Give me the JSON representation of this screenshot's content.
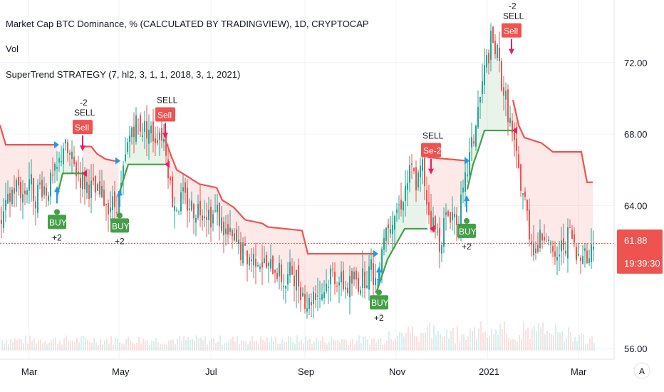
{
  "legend": {
    "title": "Market Cap BTC Dominance, % (CALCULATED BY TRADINGVIEW), 1D, CRYPTOCAP",
    "vol": "Vol",
    "strategy": "SuperTrend STRATEGY (7, hl2, 3, 1, 1, 2018, 3, 1, 2021)"
  },
  "price_badge": {
    "value": "61.88",
    "countdown": "19:39:30",
    "color": "#ef5350"
  },
  "auto_scale_label": "A",
  "colors": {
    "up": "#26a69a",
    "down": "#ef5350",
    "buy": "#43a047",
    "sell": "#ef5350",
    "grid": "#f0f3fa"
  },
  "chart_data": {
    "type": "candlestick",
    "yticks": [
      56.0,
      64.0,
      68.0,
      72.0
    ],
    "ytick_labels": [
      "56.00",
      "64.00",
      "68.00",
      "72.00"
    ],
    "ylim": [
      55.4,
      75.5
    ],
    "xticks": [
      "Mar",
      "May",
      "Jul",
      "Sep",
      "Nov",
      "2021",
      "Mar"
    ],
    "last_price": 61.88,
    "close_path": [
      [
        0,
        63.0
      ],
      [
        8,
        63.8
      ],
      [
        16,
        64.8
      ],
      [
        24,
        65.2
      ],
      [
        32,
        64.5
      ],
      [
        40,
        65.6
      ],
      [
        48,
        64.4
      ],
      [
        56,
        65.2
      ],
      [
        64,
        64.9
      ],
      [
        72,
        65.3
      ],
      [
        80,
        66.0
      ],
      [
        88,
        67.4
      ],
      [
        96,
        66.7
      ],
      [
        104,
        66.1
      ],
      [
        112,
        65.6
      ],
      [
        120,
        65.2
      ],
      [
        128,
        64.9
      ],
      [
        136,
        64.6
      ],
      [
        144,
        64.4
      ],
      [
        152,
        64.1
      ],
      [
        160,
        64.0
      ],
      [
        168,
        64.6
      ],
      [
        176,
        66.8
      ],
      [
        184,
        68.4
      ],
      [
        192,
        68.7
      ],
      [
        200,
        68.3
      ],
      [
        208,
        68.3
      ],
      [
        216,
        67.8
      ],
      [
        224,
        68.3
      ],
      [
        232,
        67.3
      ],
      [
        240,
        64.4
      ],
      [
        248,
        64.0
      ],
      [
        256,
        64.4
      ],
      [
        264,
        64.0
      ],
      [
        272,
        63.8
      ],
      [
        280,
        63.9
      ],
      [
        288,
        63.8
      ],
      [
        296,
        63.4
      ],
      [
        304,
        63.6
      ],
      [
        312,
        62.8
      ],
      [
        320,
        62.2
      ],
      [
        328,
        62.0
      ],
      [
        336,
        61.5
      ],
      [
        344,
        61.2
      ],
      [
        352,
        61.0
      ],
      [
        360,
        61.2
      ],
      [
        368,
        60.8
      ],
      [
        376,
        60.4
      ],
      [
        384,
        60.7
      ],
      [
        392,
        60.1
      ],
      [
        400,
        59.6
      ],
      [
        408,
        60.4
      ],
      [
        416,
        59.9
      ],
      [
        424,
        59.1
      ],
      [
        432,
        58.4
      ],
      [
        440,
        59.3
      ],
      [
        448,
        59.0
      ],
      [
        456,
        59.5
      ],
      [
        464,
        60.3
      ],
      [
        472,
        60.0
      ],
      [
        480,
        59.6
      ],
      [
        488,
        59.4
      ],
      [
        496,
        59.9
      ],
      [
        504,
        59.7
      ],
      [
        512,
        60.1
      ],
      [
        520,
        60.4
      ],
      [
        528,
        59.6
      ],
      [
        536,
        62.3
      ],
      [
        544,
        63.1
      ],
      [
        552,
        63.6
      ],
      [
        560,
        64.0
      ],
      [
        568,
        65.0
      ],
      [
        576,
        66.0
      ],
      [
        584,
        65.2
      ],
      [
        592,
        66.2
      ],
      [
        600,
        63.8
      ],
      [
        608,
        62.8
      ],
      [
        616,
        62.0
      ],
      [
        624,
        63.2
      ],
      [
        632,
        63.7
      ],
      [
        640,
        63.3
      ],
      [
        648,
        64.2
      ],
      [
        656,
        66.3
      ],
      [
        664,
        67.8
      ],
      [
        672,
        69.8
      ],
      [
        680,
        71.7
      ],
      [
        688,
        73.1
      ],
      [
        696,
        72.6
      ],
      [
        704,
        70.8
      ],
      [
        712,
        69.3
      ],
      [
        720,
        67.4
      ],
      [
        728,
        65.6
      ],
      [
        736,
        64.2
      ],
      [
        744,
        62.1
      ],
      [
        752,
        61.5
      ],
      [
        760,
        62.3
      ],
      [
        768,
        62.8
      ],
      [
        776,
        60.5
      ],
      [
        784,
        61.4
      ],
      [
        792,
        61.9
      ],
      [
        800,
        62.5
      ],
      [
        808,
        61.0
      ],
      [
        816,
        61.8
      ],
      [
        824,
        60.9
      ],
      [
        832,
        61.88
      ]
    ],
    "supertrend": [
      {
        "direction": "down",
        "points": [
          [
            0,
            68.5
          ],
          [
            8,
            67.4
          ],
          [
            80,
            67.4
          ]
        ]
      },
      {
        "direction": "up",
        "points": [
          [
            80,
            64.5
          ],
          [
            88,
            65.8
          ],
          [
            116,
            65.8
          ]
        ]
      },
      {
        "direction": "down",
        "points": [
          [
            116,
            67.3
          ],
          [
            128,
            67.3
          ],
          [
            136,
            66.9
          ],
          [
            148,
            66.6
          ],
          [
            160,
            66.5
          ],
          [
            166,
            66.5
          ]
        ]
      },
      {
        "direction": "up",
        "points": [
          [
            166,
            64.5
          ],
          [
            176,
            65.8
          ],
          [
            180,
            66.3
          ],
          [
            232,
            66.3
          ]
        ]
      },
      {
        "direction": "down",
        "points": [
          [
            232,
            67.7
          ],
          [
            240,
            66.8
          ],
          [
            248,
            66.0
          ],
          [
            264,
            65.6
          ],
          [
            280,
            65.2
          ],
          [
            304,
            65.0
          ],
          [
            312,
            64.3
          ],
          [
            328,
            63.9
          ],
          [
            344,
            63.2
          ],
          [
            368,
            63.0
          ],
          [
            376,
            62.8
          ],
          [
            424,
            62.6
          ],
          [
            432,
            61.3
          ],
          [
            528,
            61.3
          ]
        ]
      },
      {
        "direction": "up",
        "points": [
          [
            528,
            59.1
          ],
          [
            544,
            61.0
          ],
          [
            568,
            62.7
          ],
          [
            600,
            62.7
          ]
        ]
      },
      {
        "direction": "down",
        "points": [
          [
            600,
            66.7
          ],
          [
            656,
            66.5
          ]
        ]
      },
      {
        "direction": "up",
        "points": [
          [
            656,
            64.9
          ],
          [
            664,
            66.3
          ],
          [
            672,
            67.2
          ],
          [
            680,
            68.2
          ],
          [
            720,
            68.2
          ]
        ]
      },
      {
        "direction": "down",
        "points": [
          [
            720,
            69.9
          ],
          [
            728,
            68.5
          ],
          [
            736,
            67.8
          ],
          [
            760,
            67.5
          ],
          [
            776,
            67.0
          ],
          [
            816,
            67.0
          ],
          [
            824,
            65.3
          ],
          [
            832,
            65.3
          ]
        ]
      }
    ],
    "signals": [
      {
        "type": "buy",
        "x": 80,
        "y": 63.8,
        "badge": "BUY",
        "label": "+2"
      },
      {
        "type": "sell",
        "x": 116,
        "y": 67.6,
        "badge": "Sell",
        "label": "SELL",
        "extra": "-2"
      },
      {
        "type": "buy",
        "x": 168,
        "y": 63.6,
        "badge": "BUY",
        "label": "+2"
      },
      {
        "type": "sell",
        "x": 232,
        "y": 68.3,
        "badge": "Sell",
        "label": "SELL"
      },
      {
        "type": "buy",
        "x": 532,
        "y": 59.3,
        "badge": "BUY",
        "label": "+2"
      },
      {
        "type": "sell",
        "x": 605,
        "y": 66.3,
        "badge": "Se-2",
        "label": "SELL"
      },
      {
        "type": "buy",
        "x": 655,
        "y": 63.3,
        "badge": "BUY",
        "label": "+2"
      },
      {
        "type": "sell",
        "x": 718,
        "y": 73.0,
        "badge": "Sell",
        "label": "SELL",
        "extra": "-2"
      }
    ],
    "ribbon_markers": [
      {
        "kind": "arrow-right",
        "x": 80,
        "y": 67.4
      },
      {
        "kind": "arrow-left",
        "x": 118,
        "y": 65.8
      },
      {
        "kind": "arrow-right",
        "x": 166,
        "y": 66.5
      },
      {
        "kind": "arrow-left",
        "x": 234,
        "y": 66.3
      },
      {
        "kind": "arrow-right",
        "x": 528,
        "y": 61.3
      },
      {
        "kind": "arrow-left",
        "x": 606,
        "y": 62.7
      },
      {
        "kind": "arrow-right",
        "x": 656,
        "y": 66.5
      },
      {
        "kind": "arrow-left",
        "x": 722,
        "y": 68.2
      }
    ]
  }
}
